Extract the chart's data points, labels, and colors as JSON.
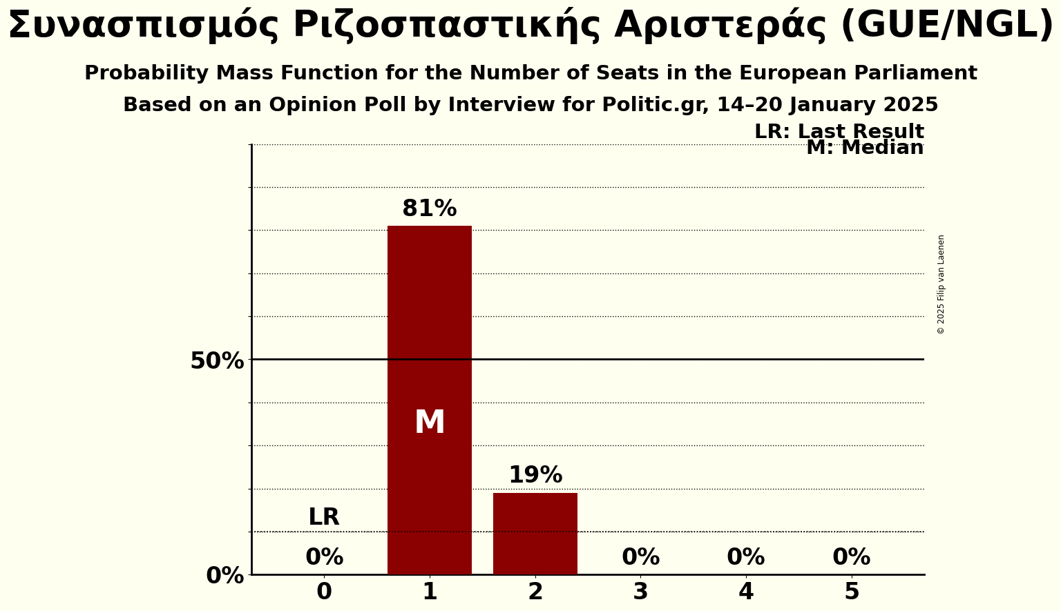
{
  "title_greek": "Συνασπισμός Ριζοσπαστικής Αριστεράς (GUE/NGL)",
  "subtitle1": "Probability Mass Function for the Number of Seats in the European Parliament",
  "subtitle2": "Based on an Opinion Poll by Interview for Politic.gr, 14–20 January 2025",
  "copyright": "© 2025 Filip van Laenen",
  "seats": [
    0,
    1,
    2,
    3,
    4,
    5
  ],
  "probabilities": [
    0.0,
    0.81,
    0.19,
    0.0,
    0.0,
    0.0
  ],
  "bar_color": "#8b0000",
  "background_color": "#fffff0",
  "median_seat": 1,
  "last_result_seat": 0,
  "last_result_prob": 0.1,
  "lr_label": "LR: Last Result",
  "m_label": "M: Median",
  "ylim": [
    0,
    1.0
  ],
  "yticks": [
    0.0,
    0.1,
    0.2,
    0.3,
    0.4,
    0.5,
    0.6,
    0.7,
    0.8,
    0.9,
    1.0
  ],
  "title_fontsize": 38,
  "subtitle_fontsize": 21,
  "axis_label_fontsize": 24,
  "bar_label_fontsize": 24,
  "legend_fontsize": 21,
  "m_inside_fontsize": 34,
  "lr_inside_fontsize": 24
}
